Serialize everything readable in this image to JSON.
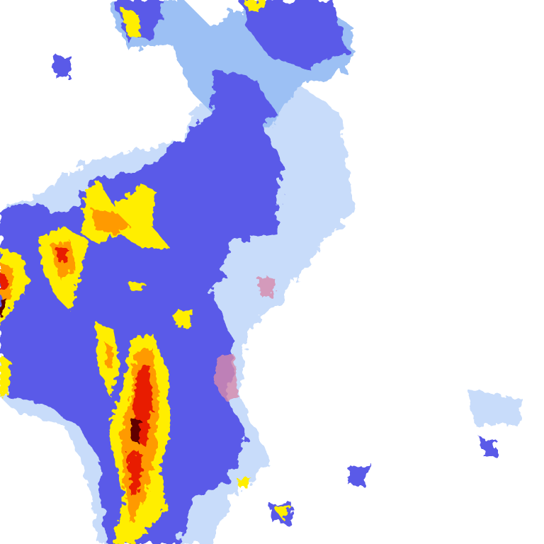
{
  "map": {
    "type": "weather-radar-precipitation-tile",
    "background": "#ffffff",
    "palette": {
      "very_light": "#c8dcfa",
      "light": "#9cc0f4",
      "moderate": "#5a5ae8",
      "strong": "#3c3cf0",
      "heavy": "#ffee00",
      "very_heavy": "#ff9a00",
      "intense": "#e81c00",
      "extreme": "#600000",
      "mixed": "#d88aac"
    }
  }
}
